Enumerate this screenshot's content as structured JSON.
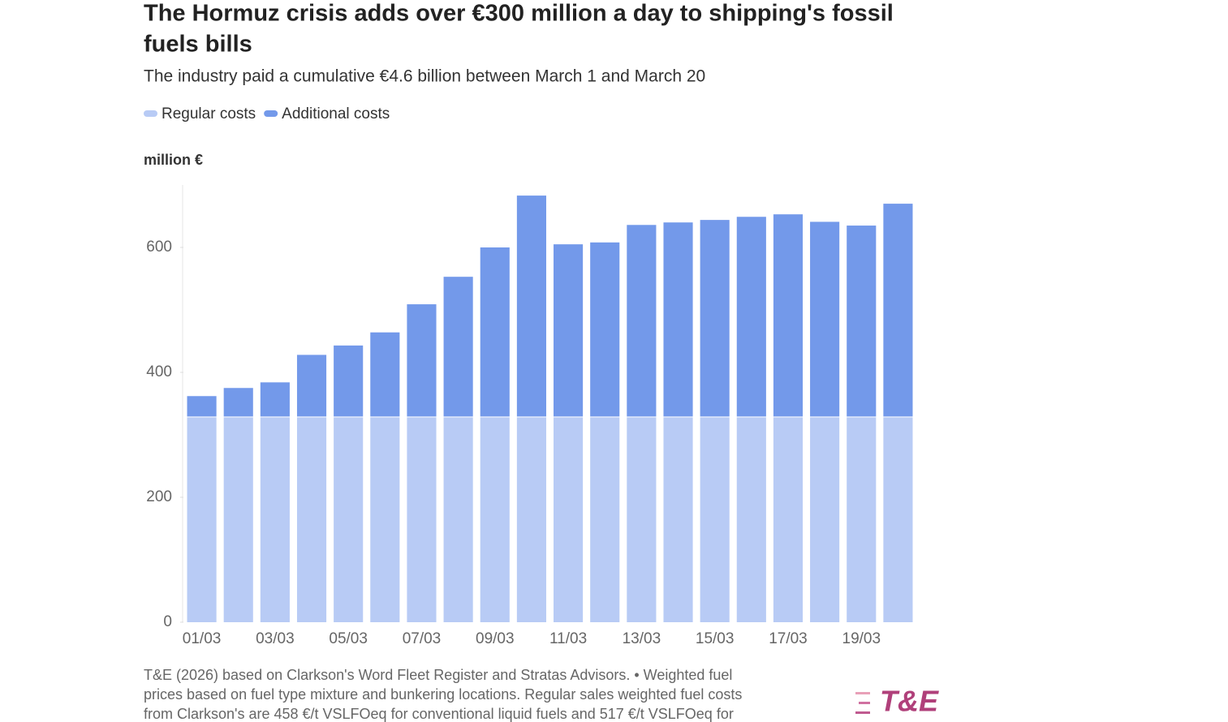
{
  "chart_data": {
    "type": "stacked_bar",
    "title_lines": [
      "The Hormuz crisis adds over €300 million a day to shipping's fossil",
      "fuels bills"
    ],
    "subtitle": "The industry paid a cumulative €4.6 billion between March 1 and March 20",
    "y_label": "million €",
    "categories": [
      "01/03",
      null,
      "03/03",
      null,
      "05/03",
      null,
      "07/03",
      null,
      "09/03",
      null,
      "11/03",
      null,
      "13/03",
      null,
      "15/03",
      null,
      "17/03",
      null,
      "19/03",
      null
    ],
    "series": [
      {
        "name": "Regular costs",
        "color": "#b8cbf5",
        "values": [
          328,
          328,
          328,
          328,
          328,
          328,
          328,
          328,
          328,
          328,
          328,
          328,
          328,
          328,
          328,
          328,
          328,
          328,
          328,
          328
        ]
      },
      {
        "name": "Additional costs",
        "color": "#7399ea",
        "values": [
          34,
          47,
          56,
          100,
          115,
          136,
          181,
          225,
          272,
          355,
          277,
          280,
          308,
          312,
          316,
          321,
          325,
          313,
          307,
          342
        ]
      }
    ],
    "ylim": [
      0,
      700
    ],
    "yticks": [
      0,
      200,
      400,
      600
    ],
    "note_lines": [
      "T&E (2026) based on Clarkson's Word Fleet Register and Stratas Advisors. • Weighted fuel",
      "prices based on fuel type mixture and bunkering locations. Regular sales weighted fuel costs",
      "from Clarkson's are 458 €/t VSLFOeq for conventional liquid fuels and 517 €/t VSLFOeq for"
    ],
    "logo": "T&E"
  }
}
